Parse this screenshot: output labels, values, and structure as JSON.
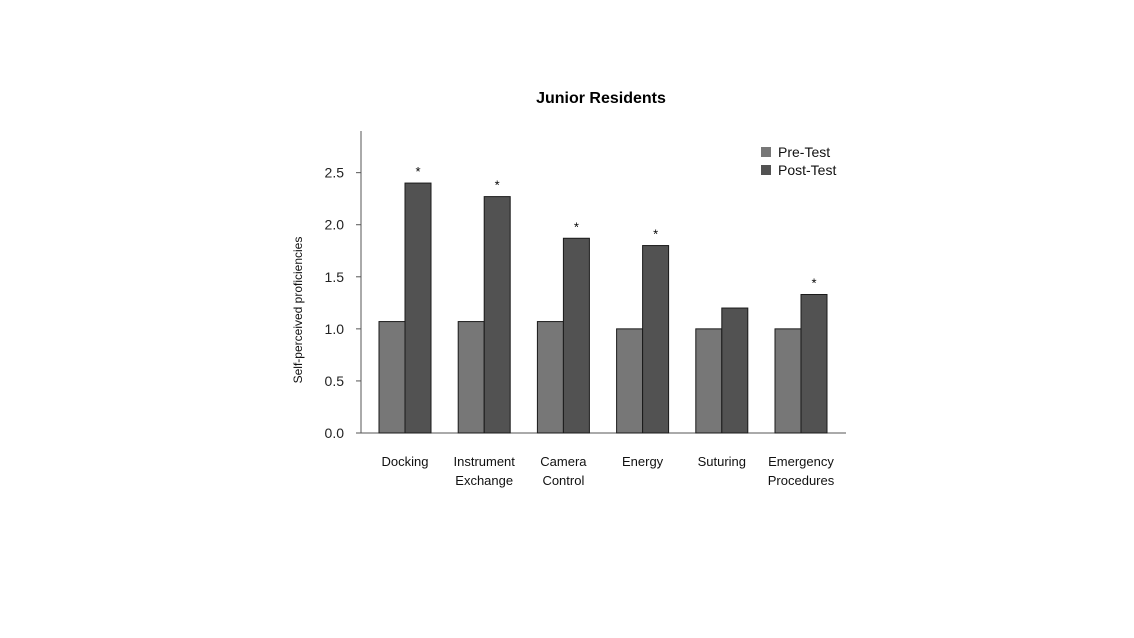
{
  "chart_data": {
    "type": "bar",
    "title": "Junior Residents",
    "xlabel": "",
    "ylabel": "Self-perceived proficiencies",
    "ylim": [
      0,
      2.9
    ],
    "yticks": [
      "0.0",
      "0.5",
      "1.0",
      "1.5",
      "2.0",
      "2.5"
    ],
    "categories": [
      [
        "Docking"
      ],
      [
        "Instrument",
        "Exchange"
      ],
      [
        "Camera",
        "Control"
      ],
      [
        "Energy"
      ],
      [
        "Suturing"
      ],
      [
        "Emergency",
        "Procedures"
      ]
    ],
    "series": [
      {
        "name": "Pre-Test",
        "color": "#777777",
        "values": [
          1.07,
          1.07,
          1.07,
          1.0,
          1.0,
          1.0
        ]
      },
      {
        "name": "Post-Test",
        "color": "#525252",
        "values": [
          2.4,
          2.27,
          1.87,
          1.8,
          1.2,
          1.33
        ]
      }
    ],
    "significance_marker": "*",
    "significant": [
      true,
      true,
      true,
      true,
      false,
      true
    ],
    "legend_position": "top-right",
    "grid": false
  }
}
